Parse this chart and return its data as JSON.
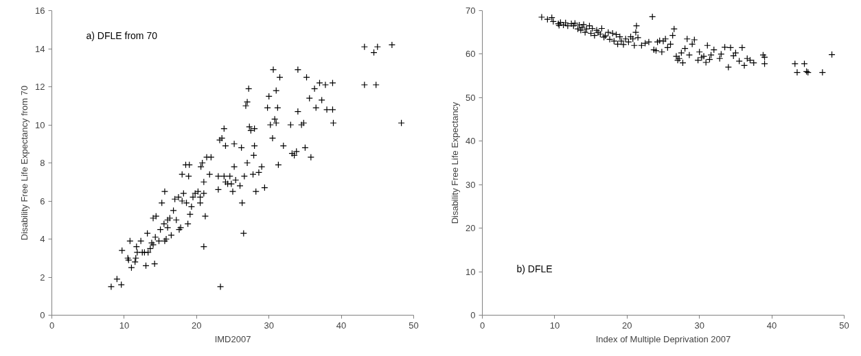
{
  "chart_data": [
    {
      "type": "scatter",
      "xlabel": "IMD2007",
      "ylabel": "Disability Free Life Expectancy from 70",
      "annotations": [
        "a) DFLE from 70"
      ],
      "marker": "cross",
      "grid": false,
      "xlim": [
        0,
        50
      ],
      "xticks": [
        0,
        10,
        20,
        30,
        40,
        50
      ],
      "ylim": [
        0,
        16
      ],
      "yticks": [
        0,
        2,
        4,
        6,
        8,
        10,
        12,
        14,
        16
      ],
      "series": [
        {
          "color": "#000000",
          "x": [
            8.2,
            9.0,
            9.6,
            9.7,
            10.5,
            10.6,
            10.8,
            11.0,
            11.5,
            11.6,
            11.7,
            11.8,
            12.3,
            12.5,
            12.8,
            13.0,
            13.2,
            13.3,
            13.6,
            13.8,
            14.0,
            14.0,
            14.2,
            14.3,
            14.4,
            14.8,
            15.0,
            15.2,
            15.5,
            15.6,
            15.6,
            15.8,
            16.0,
            16.0,
            16.3,
            16.5,
            16.8,
            17.0,
            17.2,
            17.5,
            17.6,
            17.8,
            18.0,
            18.0,
            18.2,
            18.5,
            18.6,
            18.8,
            18.9,
            19.0,
            19.1,
            19.3,
            19.5,
            19.8,
            20.2,
            20.5,
            20.5,
            20.6,
            20.8,
            21.0,
            21.0,
            21.0,
            21.2,
            21.4,
            21.8,
            22.0,
            23.0,
            23.0,
            23.2,
            23.3,
            23.5,
            23.8,
            23.8,
            24.0,
            24.0,
            24.3,
            24.6,
            24.8,
            25.0,
            25.2,
            25.2,
            25.4,
            26.0,
            26.2,
            26.3,
            26.5,
            26.6,
            26.8,
            27.0,
            27.0,
            27.2,
            27.3,
            27.5,
            27.8,
            27.9,
            28.0,
            28.0,
            28.2,
            28.6,
            29.0,
            29.4,
            29.8,
            30.0,
            30.2,
            30.5,
            30.6,
            30.8,
            31.0,
            31.2,
            31.3,
            31.5,
            31.0,
            32.0,
            33.0,
            33.2,
            33.5,
            33.8,
            34.0,
            34.0,
            34.5,
            34.8,
            35.0,
            35.2,
            35.6,
            35.8,
            36.3,
            36.5,
            37.0,
            37.3,
            37.8,
            38.0,
            38.8,
            38.8,
            38.9,
            43.2,
            43.2,
            44.5,
            44.8,
            45.0,
            47.0,
            48.3
          ],
          "values": [
            1.5,
            1.9,
            1.6,
            3.4,
            3.0,
            2.9,
            3.9,
            2.5,
            2.8,
            3.0,
            3.6,
            3.3,
            3.9,
            3.3,
            3.3,
            2.6,
            4.3,
            3.3,
            3.5,
            3.8,
            3.7,
            5.1,
            2.7,
            4.1,
            5.2,
            3.9,
            4.5,
            5.9,
            4.8,
            6.5,
            3.9,
            4.0,
            4.6,
            5.0,
            5.1,
            4.2,
            5.5,
            6.1,
            5.0,
            6.2,
            4.5,
            4.6,
            6.0,
            7.4,
            6.4,
            7.9,
            5.9,
            4.8,
            7.3,
            7.9,
            5.3,
            5.7,
            6.2,
            6.4,
            6.5,
            5.9,
            6.2,
            7.8,
            8.0,
            6.4,
            7.0,
            3.6,
            5.2,
            8.3,
            7.4,
            8.3,
            7.3,
            6.6,
            9.2,
            1.5,
            9.3,
            9.8,
            7.3,
            8.9,
            7.0,
            6.9,
            7.3,
            6.9,
            6.5,
            9.0,
            7.8,
            7.1,
            6.8,
            8.8,
            5.9,
            4.3,
            7.3,
            11.0,
            8.0,
            11.2,
            11.9,
            9.9,
            9.7,
            7.4,
            8.4,
            9.8,
            8.9,
            6.5,
            7.5,
            7.8,
            6.7,
            10.9,
            11.5,
            10.0,
            9.3,
            12.9,
            10.3,
            11.8,
            10.9,
            7.9,
            12.5,
            10.1,
            8.9,
            10.0,
            8.5,
            8.4,
            8.6,
            12.9,
            10.7,
            10.0,
            10.1,
            8.8,
            12.5,
            11.4,
            8.3,
            11.9,
            10.9,
            12.2,
            11.3,
            12.1,
            10.8,
            12.2,
            10.8,
            10.1,
            14.1,
            12.1,
            13.8,
            12.1,
            14.1,
            14.2,
            10.1
          ]
        }
      ]
    },
    {
      "type": "scatter",
      "xlabel": "Index of Multiple Deprivation 2007",
      "ylabel": "Disability Free Life Expectancy",
      "annotations": [
        "b) DFLE"
      ],
      "marker": "cross",
      "grid": false,
      "xlim": [
        0,
        50
      ],
      "xticks": [
        0,
        10,
        20,
        30,
        40,
        50
      ],
      "ylim": [
        0,
        70
      ],
      "yticks": [
        0,
        10,
        20,
        30,
        40,
        50,
        60,
        70
      ],
      "series": [
        {
          "color": "#000000",
          "x": [
            8.2,
            9.0,
            9.6,
            9.8,
            10.5,
            10.6,
            10.8,
            11.2,
            11.5,
            11.8,
            12.3,
            12.6,
            12.8,
            13.2,
            13.4,
            13.6,
            13.8,
            14.0,
            14.2,
            14.4,
            14.8,
            15.0,
            15.2,
            15.5,
            15.8,
            16.0,
            16.3,
            16.5,
            16.8,
            17.0,
            17.4,
            17.6,
            18.0,
            18.2,
            18.5,
            18.7,
            19.0,
            19.2,
            19.5,
            19.8,
            20.2,
            20.5,
            20.8,
            21.0,
            21.2,
            21.3,
            21.5,
            22.0,
            22.5,
            23.0,
            23.5,
            23.7,
            24.0,
            24.2,
            24.5,
            24.8,
            25.0,
            25.3,
            25.6,
            26.0,
            26.3,
            26.5,
            26.8,
            27.0,
            27.2,
            27.5,
            27.7,
            28.0,
            28.3,
            28.6,
            29.0,
            29.3,
            29.8,
            30.0,
            30.3,
            30.6,
            30.9,
            31.1,
            31.4,
            31.6,
            32.0,
            32.8,
            33.0,
            33.5,
            34.0,
            34.3,
            34.7,
            35.0,
            35.5,
            35.9,
            36.2,
            36.6,
            37.0,
            37.5,
            38.8,
            39.0,
            39.0,
            43.2,
            43.5,
            44.5,
            44.8,
            45.0,
            47.0,
            48.3
          ],
          "values": [
            68.5,
            68.0,
            68.4,
            67.5,
            67.0,
            66.6,
            67.3,
            66.7,
            67.2,
            66.5,
            67.0,
            66.5,
            67.1,
            65.8,
            66.7,
            65.5,
            66.2,
            66.8,
            65.0,
            65.8,
            66.5,
            64.8,
            65.9,
            64.3,
            65.5,
            65.0,
            64.6,
            65.9,
            63.9,
            64.2,
            65.0,
            63.4,
            64.8,
            63.0,
            64.5,
            62.3,
            64.0,
            63.0,
            62.2,
            63.5,
            62.8,
            64.0,
            63.5,
            62.0,
            65.0,
            66.5,
            63.8,
            62.0,
            62.5,
            62.8,
            68.6,
            61.0,
            60.8,
            62.8,
            63.1,
            60.5,
            63.0,
            63.5,
            61.5,
            62.3,
            64.3,
            65.8,
            59.5,
            58.6,
            59.0,
            60.3,
            58.0,
            61.3,
            63.5,
            59.8,
            62.3,
            63.3,
            58.6,
            60.5,
            59.2,
            59.5,
            58.1,
            62.0,
            58.8,
            59.8,
            61.0,
            59.0,
            60.0,
            61.6,
            57.0,
            61.5,
            59.6,
            60.3,
            58.4,
            61.5,
            57.4,
            59.0,
            58.6,
            58.0,
            59.8,
            57.8,
            59.3,
            57.8,
            55.8,
            57.8,
            56.0,
            55.8,
            55.8,
            59.9
          ]
        }
      ]
    }
  ]
}
